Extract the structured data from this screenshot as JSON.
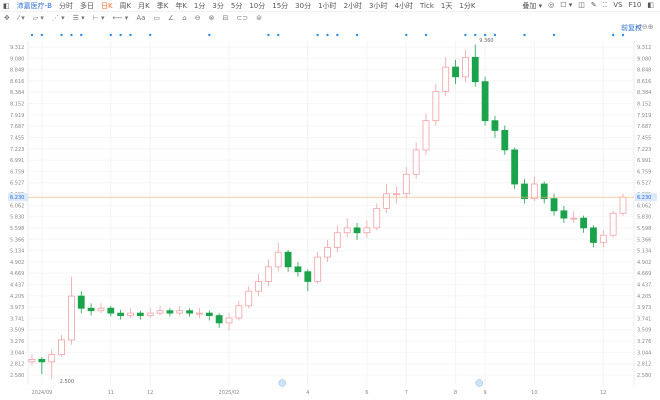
{
  "toolbar": {
    "symbol": "沛嘉医疗-B",
    "periods": [
      "分时",
      "多日",
      "日K",
      "周K",
      "月K",
      "季K",
      "年K",
      "1分",
      "3分",
      "5分",
      "10分",
      "15分",
      "30分",
      "1小时",
      "2小时",
      "3小时",
      "4小时",
      "Tick",
      "1天",
      "1分K"
    ],
    "active": "日K",
    "right": [
      "叠加 ▾",
      "◎",
      "☐ ▾",
      "◫",
      "✎",
      "⁚⁚",
      "VS",
      "F10",
      "◧"
    ]
  },
  "drawing_tools": [
    "✥",
    "⁄ ▾",
    "▱ ▾",
    "⋰ ▾",
    "☰ ▾",
    "⊢ ▾",
    "⟵ ▾",
    "Aa",
    "▭",
    "∠",
    "⌂",
    "⊖",
    "⊗",
    "⊟",
    "⊂⊃",
    "⊜"
  ],
  "adjust_label": "前复权",
  "chart_controls": "↺⊖⊕",
  "colors": {
    "up": "#f2a1a6",
    "down": "#1aa34a",
    "last_line": "#f5b27a",
    "marker": "#2f8ee0"
  },
  "chart_data": {
    "type": "candlestick",
    "ylim": [
      2.58,
      9.312
    ],
    "yticks": [
      "9.312",
      "9.080",
      "8.848",
      "8.616",
      "8.384",
      "8.152",
      "7.919",
      "7.687",
      "7.455",
      "7.223",
      "6.991",
      "6.759",
      "6.527",
      "6.295",
      "6.062",
      "5.830",
      "5.598",
      "5.366",
      "5.134",
      "4.902",
      "4.669",
      "4.437",
      "4.205",
      "3.973",
      "3.741",
      "3.509",
      "3.276",
      "3.044",
      "2.812",
      "2.580"
    ],
    "last_price": "6.230",
    "high_label": "9.360",
    "high_index": 45,
    "low_label": "2.500",
    "low_index": 2,
    "xticks": [
      {
        "label": "2024/09",
        "i": 1
      },
      {
        "label": "11",
        "i": 8
      },
      {
        "label": "12",
        "i": 12
      },
      {
        "label": "2025/02",
        "i": 20
      },
      {
        "label": "4",
        "i": 28
      },
      {
        "label": "6",
        "i": 34
      },
      {
        "label": "7",
        "i": 38
      },
      {
        "label": "8",
        "i": 43
      },
      {
        "label": "9",
        "i": 46
      },
      {
        "label": "10",
        "i": 51
      },
      {
        "label": "12",
        "i": 58
      }
    ],
    "event_badges": [
      25,
      45
    ],
    "event_markers": [
      0,
      1,
      3,
      4,
      5,
      8,
      9,
      10,
      12,
      18,
      24,
      25,
      29,
      30,
      31,
      33,
      38,
      40,
      44,
      45,
      46,
      47,
      50,
      53,
      59,
      60
    ],
    "candles": [
      [
        2.85,
        3.0,
        2.78,
        2.9
      ],
      [
        2.9,
        2.95,
        2.6,
        2.85
      ],
      [
        2.85,
        3.1,
        2.5,
        3.0
      ],
      [
        3.0,
        3.4,
        2.95,
        3.3
      ],
      [
        3.3,
        4.6,
        3.2,
        4.2
      ],
      [
        4.2,
        4.3,
        3.85,
        3.95
      ],
      [
        3.95,
        4.05,
        3.8,
        3.9
      ],
      [
        3.9,
        4.05,
        3.85,
        3.95
      ],
      [
        3.95,
        4.0,
        3.78,
        3.85
      ],
      [
        3.85,
        3.92,
        3.72,
        3.8
      ],
      [
        3.8,
        3.95,
        3.75,
        3.85
      ],
      [
        3.85,
        3.9,
        3.72,
        3.8
      ],
      [
        3.8,
        3.95,
        3.75,
        3.85
      ],
      [
        3.85,
        4.0,
        3.8,
        3.9
      ],
      [
        3.9,
        3.95,
        3.78,
        3.85
      ],
      [
        3.85,
        4.0,
        3.8,
        3.9
      ],
      [
        3.9,
        3.95,
        3.78,
        3.85
      ],
      [
        3.85,
        3.95,
        3.75,
        3.85
      ],
      [
        3.85,
        3.9,
        3.7,
        3.8
      ],
      [
        3.8,
        3.85,
        3.55,
        3.65
      ],
      [
        3.65,
        3.85,
        3.5,
        3.75
      ],
      [
        3.75,
        4.1,
        3.7,
        4.0
      ],
      [
        4.0,
        4.4,
        3.95,
        4.3
      ],
      [
        4.3,
        4.65,
        4.2,
        4.5
      ],
      [
        4.5,
        4.95,
        4.4,
        4.8
      ],
      [
        4.8,
        5.3,
        4.7,
        5.1
      ],
      [
        5.1,
        5.15,
        4.7,
        4.8
      ],
      [
        4.8,
        4.9,
        4.6,
        4.7
      ],
      [
        4.7,
        4.75,
        4.3,
        4.5
      ],
      [
        4.5,
        5.1,
        4.45,
        5.0
      ],
      [
        5.0,
        5.35,
        4.9,
        5.2
      ],
      [
        5.2,
        5.65,
        5.1,
        5.5
      ],
      [
        5.5,
        5.8,
        5.4,
        5.6
      ],
      [
        5.6,
        5.7,
        5.35,
        5.5
      ],
      [
        5.5,
        5.75,
        5.4,
        5.6
      ],
      [
        5.6,
        6.1,
        5.55,
        6.0
      ],
      [
        6.0,
        6.5,
        5.9,
        6.3
      ],
      [
        6.3,
        6.45,
        6.1,
        6.3
      ],
      [
        6.3,
        6.85,
        6.2,
        6.7
      ],
      [
        6.7,
        7.35,
        6.6,
        7.2
      ],
      [
        7.2,
        7.95,
        7.1,
        7.8
      ],
      [
        7.8,
        8.55,
        7.7,
        8.4
      ],
      [
        8.4,
        9.1,
        8.3,
        8.9
      ],
      [
        8.9,
        9.05,
        8.55,
        8.7
      ],
      [
        8.7,
        9.25,
        8.6,
        9.1
      ],
      [
        9.1,
        9.36,
        8.5,
        8.6
      ],
      [
        8.6,
        8.7,
        7.7,
        7.8
      ],
      [
        7.8,
        7.9,
        7.45,
        7.6
      ],
      [
        7.6,
        7.7,
        7.1,
        7.2
      ],
      [
        7.2,
        7.25,
        6.4,
        6.5
      ],
      [
        6.5,
        6.6,
        6.1,
        6.2
      ],
      [
        6.2,
        6.65,
        6.15,
        6.5
      ],
      [
        6.5,
        6.55,
        6.1,
        6.2
      ],
      [
        6.2,
        6.3,
        5.85,
        5.95
      ],
      [
        5.95,
        6.05,
        5.7,
        5.8
      ],
      [
        5.8,
        5.95,
        5.7,
        5.8
      ],
      [
        5.8,
        5.85,
        5.5,
        5.6
      ],
      [
        5.6,
        5.65,
        5.2,
        5.3
      ],
      [
        5.3,
        5.55,
        5.2,
        5.45
      ],
      [
        5.45,
        5.95,
        5.4,
        5.9
      ],
      [
        5.9,
        6.3,
        5.85,
        6.23
      ]
    ]
  }
}
